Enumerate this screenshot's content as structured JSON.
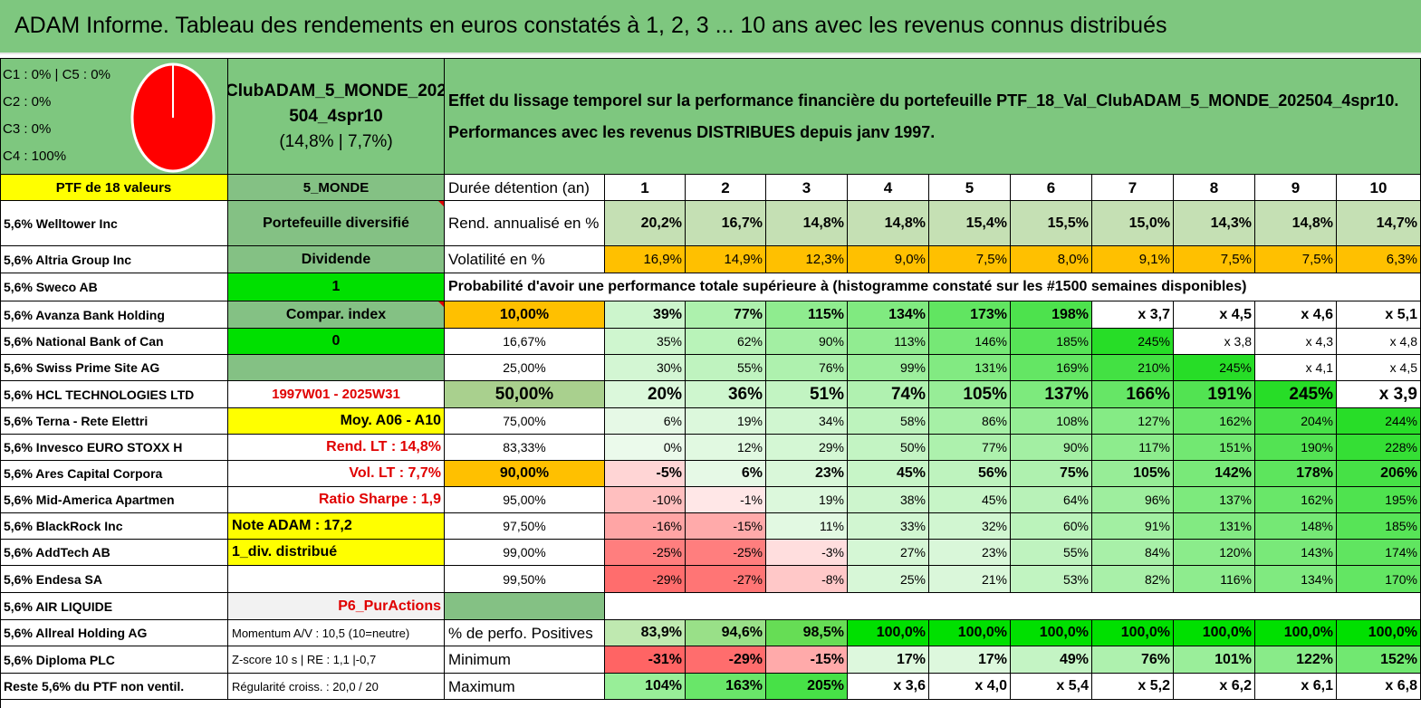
{
  "title": "ADAM Informe. Tableau des rendements en euros constatés à 1, 2, 3 ... 10 ans avec les revenus connus distribués",
  "allocation": {
    "lines": [
      "C1 : 0% | C5 : 0%",
      "C2 : 0%",
      "C3 : 0%",
      "C4 : 100%"
    ],
    "pie_color": "#ff0000"
  },
  "portfolio": {
    "name_line1": "ClubADAM_5_MONDE_202",
    "name_line2": "504_4spr10",
    "name_line3": "(14,8% | 7,7%)"
  },
  "description": {
    "line1": "Effet du lissage temporel sur la performance financière du portefeuille PTF_18_Val_ClubADAM_5_MONDE_202504_4spr10.",
    "line2": "Performances avec les revenus DISTRIBUES depuis janv 1997."
  },
  "holdings_header": "PTF de 18 valeurs",
  "holdings": [
    "5,6% Welltower Inc",
    "5,6% Altria Group Inc",
    "5,6% Sweco AB",
    "5,6% Avanza Bank Holding",
    "5,6% National Bank of Can",
    "5,6% Swiss Prime Site AG",
    "5,6% HCL TECHNOLOGIES LTD",
    "5,6% Terna - Rete Elettri",
    "5,6% Invesco EURO STOXX H",
    "5,6% Ares Capital Corpora",
    "5,6% Mid-America Apartmen",
    "5,6% BlackRock Inc",
    "5,6% AddTech AB",
    "5,6% Endesa SA",
    "5,6% AIR LIQUIDE",
    "5,6% Allreal Holding AG",
    "5,6% Diploma PLC",
    "Reste 5,6% du PTF non ventil."
  ],
  "info_column": [
    "5_MONDE",
    "Portefeuille diversifié",
    "Dividende",
    "1",
    "Compar. index",
    "0",
    "",
    "1997W01 - 2025W31",
    "Moy. A06 - A10",
    "Rend. LT : 14,8%",
    "Vol. LT : 7,7%",
    "Ratio Sharpe : 1,9",
    "Note ADAM : 17,2",
    "1_div. distribué",
    "",
    "P6_PurActions",
    "Momentum A/V : 10,5 (10=neutre)",
    "Z-score 10 s | RE : 1,1 |-0,7",
    "Régularité croiss. : 20,0 / 20"
  ],
  "duration_label": "Durée détention (an)",
  "years": [
    "1",
    "2",
    "3",
    "4",
    "5",
    "6",
    "7",
    "8",
    "9",
    "10"
  ],
  "annualized_label": "Rend. annualisé en %",
  "annualized": [
    "20,2%",
    "16,7%",
    "14,8%",
    "14,8%",
    "15,4%",
    "15,5%",
    "15,0%",
    "14,3%",
    "14,8%",
    "14,7%"
  ],
  "volatility_label": "Volatilité en %",
  "volatility": [
    "16,9%",
    "14,9%",
    "12,3%",
    "9,0%",
    "7,5%",
    "8,0%",
    "9,1%",
    "7,5%",
    "7,5%",
    "6,3%"
  ],
  "probability_heading": "Probabilité d'avoir une performance totale supérieure à (histogramme constaté sur les #1500 semaines disponibles)",
  "probability_rows": [
    {
      "p": "10,00%",
      "values": [
        "39%",
        "77%",
        "115%",
        "134%",
        "173%",
        "198%",
        "x 3,7",
        "x 4,5",
        "x 4,6",
        "x 5,1"
      ]
    },
    {
      "p": "16,67%",
      "values": [
        "35%",
        "62%",
        "90%",
        "113%",
        "146%",
        "185%",
        "245%",
        "x 3,8",
        "x 4,3",
        "x 4,8"
      ]
    },
    {
      "p": "25,00%",
      "values": [
        "30%",
        "55%",
        "76%",
        "99%",
        "131%",
        "169%",
        "210%",
        "245%",
        "x 4,1",
        "x 4,5"
      ]
    },
    {
      "p": "50,00%",
      "values": [
        "20%",
        "36%",
        "51%",
        "74%",
        "105%",
        "137%",
        "166%",
        "191%",
        "245%",
        "x 3,9"
      ]
    },
    {
      "p": "75,00%",
      "values": [
        "6%",
        "19%",
        "34%",
        "58%",
        "86%",
        "108%",
        "127%",
        "162%",
        "204%",
        "244%"
      ]
    },
    {
      "p": "83,33%",
      "values": [
        "0%",
        "12%",
        "29%",
        "50%",
        "77%",
        "90%",
        "117%",
        "151%",
        "190%",
        "228%"
      ]
    },
    {
      "p": "90,00%",
      "values": [
        "-5%",
        "6%",
        "23%",
        "45%",
        "56%",
        "75%",
        "105%",
        "142%",
        "178%",
        "206%"
      ]
    },
    {
      "p": "95,00%",
      "values": [
        "-10%",
        "-1%",
        "19%",
        "38%",
        "45%",
        "64%",
        "96%",
        "137%",
        "162%",
        "195%"
      ]
    },
    {
      "p": "97,50%",
      "values": [
        "-16%",
        "-15%",
        "11%",
        "33%",
        "32%",
        "60%",
        "91%",
        "131%",
        "148%",
        "185%"
      ]
    },
    {
      "p": "99,00%",
      "values": [
        "-25%",
        "-25%",
        "-3%",
        "27%",
        "23%",
        "55%",
        "84%",
        "120%",
        "143%",
        "174%"
      ]
    },
    {
      "p": "99,50%",
      "values": [
        "-29%",
        "-27%",
        "-8%",
        "25%",
        "21%",
        "53%",
        "82%",
        "116%",
        "134%",
        "170%"
      ]
    }
  ],
  "summary_rows": [
    {
      "label": "% de perfo. Positives",
      "values": [
        "83,9%",
        "94,6%",
        "98,5%",
        "100,0%",
        "100,0%",
        "100,0%",
        "100,0%",
        "100,0%",
        "100,0%",
        "100,0%"
      ]
    },
    {
      "label": "Minimum",
      "values": [
        "-31%",
        "-29%",
        "-15%",
        "17%",
        "17%",
        "49%",
        "76%",
        "101%",
        "122%",
        "152%"
      ]
    },
    {
      "label": "Maximum",
      "values": [
        "104%",
        "163%",
        "205%",
        "x 3,6",
        "x 4,0",
        "x 5,4",
        "x 5,2",
        "x 6,2",
        "x 6,1",
        "x 6,8"
      ]
    }
  ],
  "colors": {
    "title_green": "#7ec77f",
    "header_yellow": "#ffff00",
    "mid_green": "#84c184",
    "bright_green": "#00e000",
    "orange": "#ffc000",
    "grey_fill": "#f2f2f2"
  }
}
